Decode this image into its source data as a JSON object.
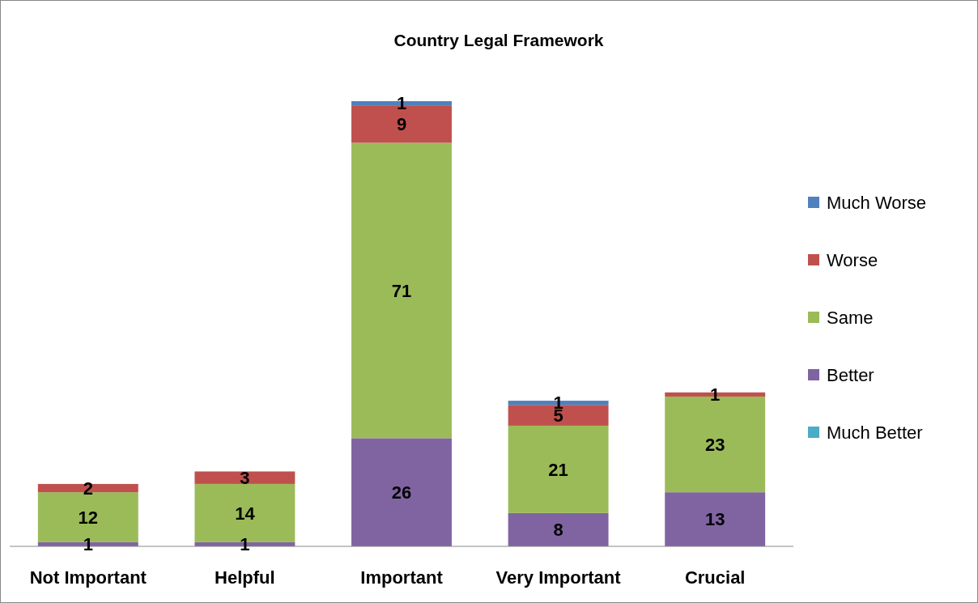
{
  "chart_data": {
    "type": "bar",
    "title": "Country Legal Framework",
    "categories": [
      "Not Important",
      "Helpful",
      "Important",
      "Very Important",
      "Crucial"
    ],
    "stacked": true,
    "data_labels": true,
    "legend": "right",
    "series": [
      {
        "name": "Much Better",
        "color": "#4bacc6",
        "values": [
          null,
          null,
          null,
          null,
          null
        ]
      },
      {
        "name": "Better",
        "color": "#8064a2",
        "values": [
          1,
          1,
          26,
          8,
          13
        ]
      },
      {
        "name": "Same",
        "color": "#9bbb59",
        "values": [
          12,
          14,
          71,
          21,
          23
        ]
      },
      {
        "name": "Worse",
        "color": "#c0504d",
        "values": [
          2,
          3,
          9,
          5,
          1
        ]
      },
      {
        "name": "Much Worse",
        "color": "#4f81bd",
        "values": [
          null,
          null,
          1,
          1,
          null
        ]
      }
    ]
  }
}
